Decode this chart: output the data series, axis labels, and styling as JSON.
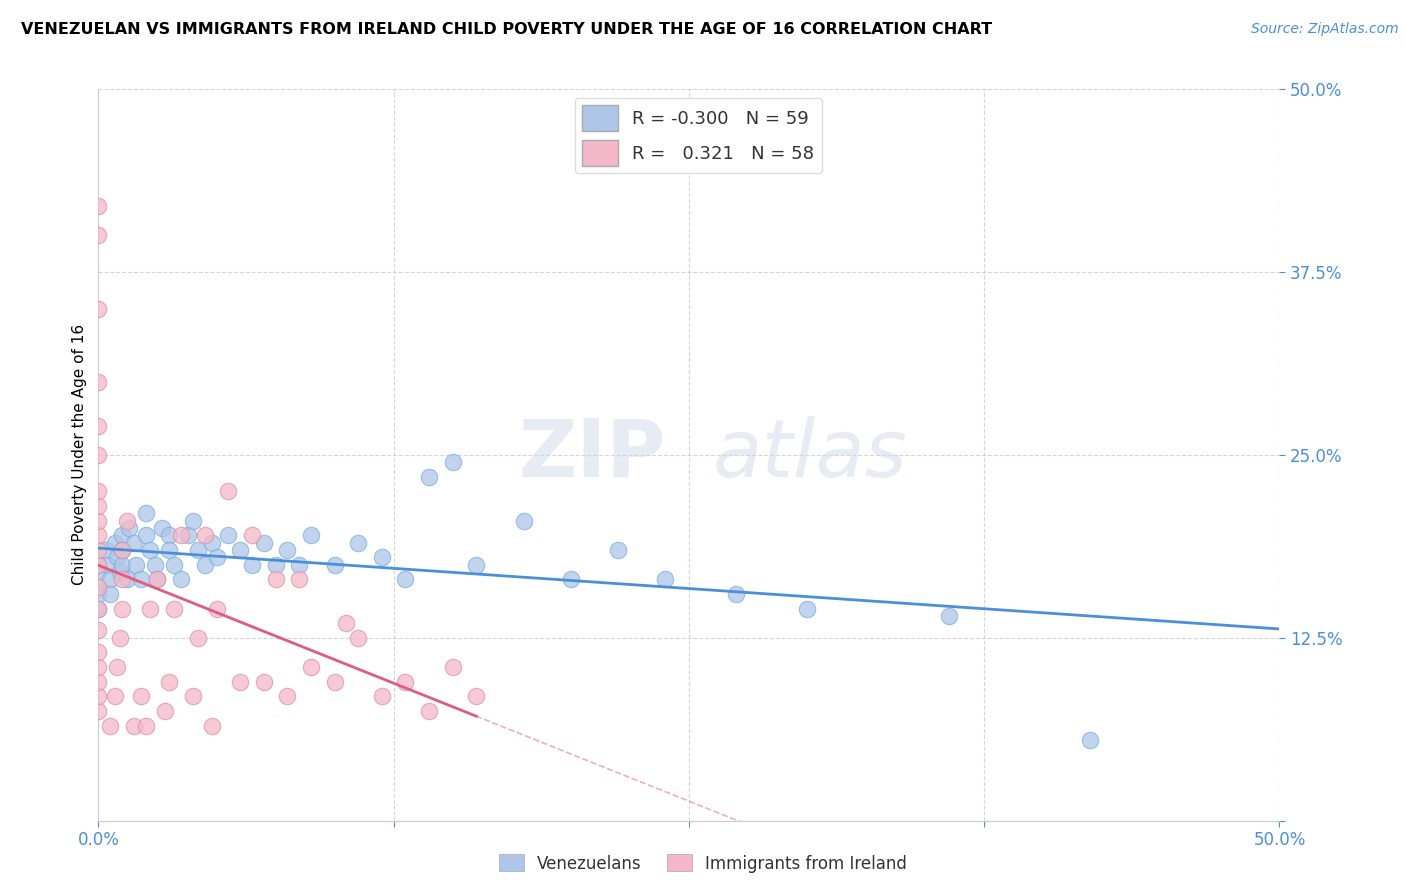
{
  "title": "VENEZUELAN VS IMMIGRANTS FROM IRELAND CHILD POVERTY UNDER THE AGE OF 16 CORRELATION CHART",
  "source": "Source: ZipAtlas.com",
  "ylabel": "Child Poverty Under the Age of 16",
  "xlim": [
    0.0,
    0.5
  ],
  "ylim": [
    0.0,
    0.5
  ],
  "grid_color": "#cccccc",
  "watermark_zip": "ZIP",
  "watermark_atlas": "atlas",
  "venezuelan_color": "#aec6e8",
  "ireland_color": "#f4b8c8",
  "venezuelan_line_color": "#4a90d9",
  "ireland_line_color": "#e05c80",
  "R_venezuelan": -0.3,
  "N_venezuelan": 59,
  "R_ireland": 0.321,
  "N_ireland": 58,
  "venezuelan_x": [
    0.0,
    0.0,
    0.0,
    0.0,
    0.0,
    0.003,
    0.004,
    0.005,
    0.005,
    0.007,
    0.008,
    0.009,
    0.01,
    0.01,
    0.01,
    0.012,
    0.013,
    0.015,
    0.016,
    0.018,
    0.02,
    0.02,
    0.022,
    0.024,
    0.025,
    0.027,
    0.03,
    0.03,
    0.032,
    0.035,
    0.038,
    0.04,
    0.042,
    0.045,
    0.048,
    0.05,
    0.055,
    0.06,
    0.065,
    0.07,
    0.075,
    0.08,
    0.085,
    0.09,
    0.1,
    0.11,
    0.12,
    0.13,
    0.14,
    0.15,
    0.16,
    0.18,
    0.2,
    0.22,
    0.24,
    0.27,
    0.3,
    0.36,
    0.42
  ],
  "venezuelan_y": [
    0.175,
    0.17,
    0.16,
    0.155,
    0.145,
    0.185,
    0.175,
    0.165,
    0.155,
    0.19,
    0.18,
    0.17,
    0.195,
    0.185,
    0.175,
    0.165,
    0.2,
    0.19,
    0.175,
    0.165,
    0.21,
    0.195,
    0.185,
    0.175,
    0.165,
    0.2,
    0.195,
    0.185,
    0.175,
    0.165,
    0.195,
    0.205,
    0.185,
    0.175,
    0.19,
    0.18,
    0.195,
    0.185,
    0.175,
    0.19,
    0.175,
    0.185,
    0.175,
    0.195,
    0.175,
    0.19,
    0.18,
    0.165,
    0.235,
    0.245,
    0.175,
    0.205,
    0.165,
    0.185,
    0.165,
    0.155,
    0.145,
    0.14,
    0.055
  ],
  "ireland_x": [
    0.0,
    0.0,
    0.0,
    0.0,
    0.0,
    0.0,
    0.0,
    0.0,
    0.0,
    0.0,
    0.0,
    0.0,
    0.0,
    0.0,
    0.0,
    0.0,
    0.0,
    0.0,
    0.0,
    0.0,
    0.005,
    0.007,
    0.008,
    0.009,
    0.01,
    0.01,
    0.01,
    0.012,
    0.015,
    0.018,
    0.02,
    0.022,
    0.025,
    0.028,
    0.03,
    0.032,
    0.035,
    0.04,
    0.042,
    0.045,
    0.048,
    0.05,
    0.055,
    0.06,
    0.065,
    0.07,
    0.075,
    0.08,
    0.085,
    0.09,
    0.1,
    0.105,
    0.11,
    0.12,
    0.13,
    0.14,
    0.15,
    0.16
  ],
  "ireland_y": [
    0.075,
    0.085,
    0.095,
    0.105,
    0.115,
    0.13,
    0.145,
    0.16,
    0.175,
    0.185,
    0.195,
    0.205,
    0.215,
    0.225,
    0.25,
    0.27,
    0.3,
    0.35,
    0.4,
    0.42,
    0.065,
    0.085,
    0.105,
    0.125,
    0.145,
    0.165,
    0.185,
    0.205,
    0.065,
    0.085,
    0.065,
    0.145,
    0.165,
    0.075,
    0.095,
    0.145,
    0.195,
    0.085,
    0.125,
    0.195,
    0.065,
    0.145,
    0.225,
    0.095,
    0.195,
    0.095,
    0.165,
    0.085,
    0.165,
    0.105,
    0.095,
    0.135,
    0.125,
    0.085,
    0.095,
    0.075,
    0.105,
    0.085
  ]
}
